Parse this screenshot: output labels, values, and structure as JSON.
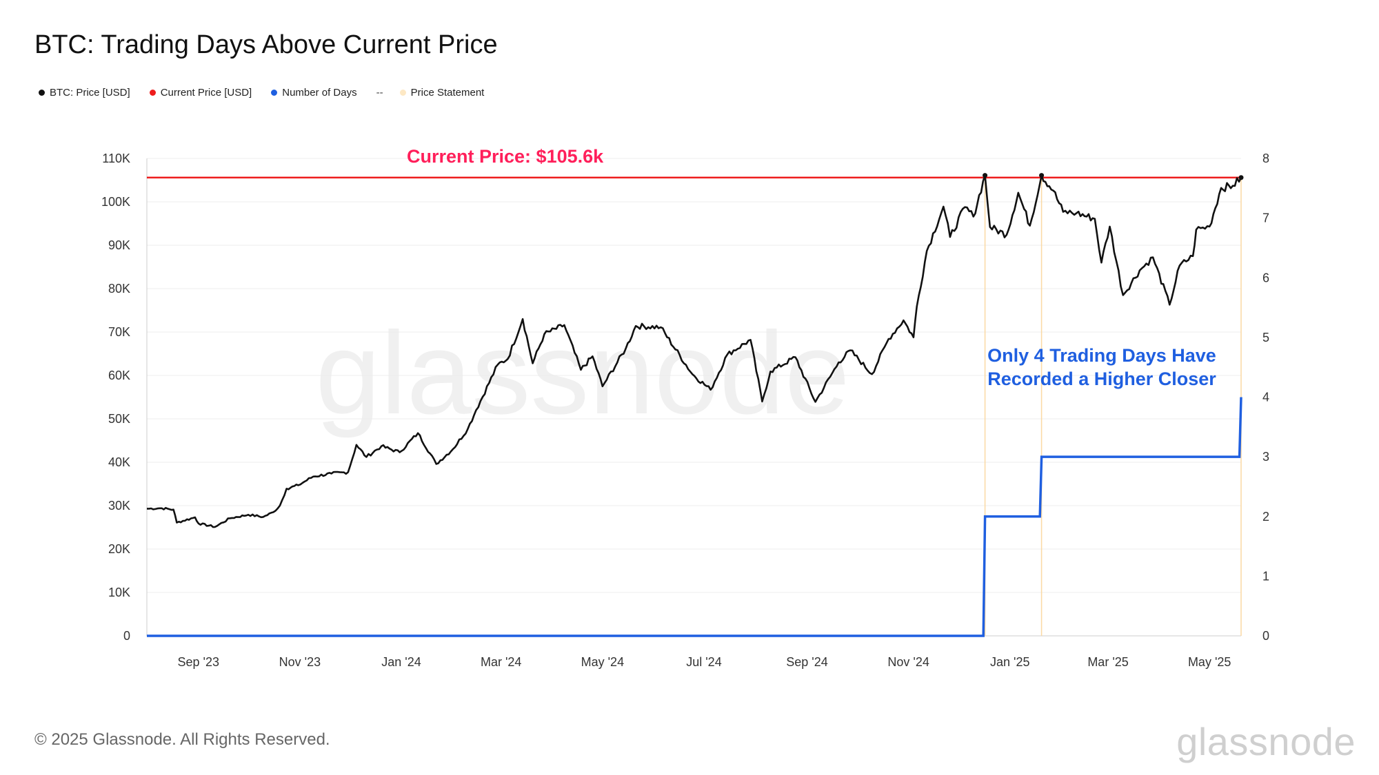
{
  "title": "BTC: Trading Days Above Current Price",
  "legend": [
    {
      "label": "BTC: Price [USD]",
      "color": "#111111"
    },
    {
      "label": "Current Price [USD]",
      "color": "#ee1c1c"
    },
    {
      "label": "Number of Days",
      "color": "#1f5fe0"
    },
    {
      "label": "--",
      "color": ""
    },
    {
      "label": "Price Statement",
      "color": "#fde8c4"
    }
  ],
  "footer": "© 2025 Glassnode. All Rights Reserved.",
  "brand": "glassnode",
  "watermark": "glassnode",
  "chart_data": {
    "type": "line",
    "title": "BTC: Trading Days Above Current Price",
    "x_range": [
      "2023-08-01",
      "2025-05-20"
    ],
    "x_ticks": [
      {
        "date": "2023-09-01",
        "label": "Sep '23"
      },
      {
        "date": "2023-11-01",
        "label": "Nov '23"
      },
      {
        "date": "2024-01-01",
        "label": "Jan '24"
      },
      {
        "date": "2024-03-01",
        "label": "Mar '24"
      },
      {
        "date": "2024-05-01",
        "label": "May '24"
      },
      {
        "date": "2024-07-01",
        "label": "Jul '24"
      },
      {
        "date": "2024-09-01",
        "label": "Sep '24"
      },
      {
        "date": "2024-11-01",
        "label": "Nov '24"
      },
      {
        "date": "2025-01-01",
        "label": "Jan '25"
      },
      {
        "date": "2025-03-01",
        "label": "Mar '25"
      },
      {
        "date": "2025-05-01",
        "label": "May '25"
      }
    ],
    "y_left": {
      "min": 0,
      "max": 110000,
      "ticks": [
        {
          "value": 0,
          "label": "0"
        },
        {
          "value": 10000,
          "label": "10K"
        },
        {
          "value": 20000,
          "label": "20K"
        },
        {
          "value": 30000,
          "label": "30K"
        },
        {
          "value": 40000,
          "label": "40K"
        },
        {
          "value": 50000,
          "label": "50K"
        },
        {
          "value": 60000,
          "label": "60K"
        },
        {
          "value": 70000,
          "label": "70K"
        },
        {
          "value": 80000,
          "label": "80K"
        },
        {
          "value": 90000,
          "label": "90K"
        },
        {
          "value": 100000,
          "label": "100K"
        },
        {
          "value": 110000,
          "label": "110K"
        }
      ]
    },
    "y_right": {
      "min": 0,
      "max": 8,
      "ticks": [
        {
          "value": 0,
          "label": "0"
        },
        {
          "value": 1,
          "label": "1"
        },
        {
          "value": 2,
          "label": "2"
        },
        {
          "value": 3,
          "label": "3"
        },
        {
          "value": 4,
          "label": "4"
        },
        {
          "value": 5,
          "label": "5"
        },
        {
          "value": 6,
          "label": "6"
        },
        {
          "value": 7,
          "label": "7"
        },
        {
          "value": 8,
          "label": "8"
        }
      ]
    },
    "grid": true,
    "current_price": 105600,
    "series": [
      {
        "name": "BTC: Price [USD]",
        "axis": "left",
        "color": "#111111",
        "points": [
          [
            "2023-08-01",
            29300
          ],
          [
            "2023-08-10",
            29400
          ],
          [
            "2023-08-17",
            29100
          ],
          [
            "2023-08-19",
            26100
          ],
          [
            "2023-08-30",
            27300
          ],
          [
            "2023-09-01",
            25900
          ],
          [
            "2023-09-11",
            25100
          ],
          [
            "2023-09-20",
            27100
          ],
          [
            "2023-10-01",
            27900
          ],
          [
            "2023-10-10",
            27400
          ],
          [
            "2023-10-16",
            28500
          ],
          [
            "2023-10-20",
            30000
          ],
          [
            "2023-10-24",
            33900
          ],
          [
            "2023-10-31",
            34700
          ],
          [
            "2023-11-09",
            36700
          ],
          [
            "2023-11-20",
            37400
          ],
          [
            "2023-11-30",
            37700
          ],
          [
            "2023-12-05",
            44000
          ],
          [
            "2023-12-11",
            41200
          ],
          [
            "2023-12-20",
            43700
          ],
          [
            "2023-12-31",
            42300
          ],
          [
            "2024-01-11",
            46700
          ],
          [
            "2024-01-22",
            39600
          ],
          [
            "2024-02-01",
            43000
          ],
          [
            "2024-02-10",
            47700
          ],
          [
            "2024-02-15",
            52000
          ],
          [
            "2024-02-28",
            62500
          ],
          [
            "2024-03-05",
            63800
          ],
          [
            "2024-03-14",
            73000
          ],
          [
            "2024-03-20",
            62800
          ],
          [
            "2024-03-27",
            69500
          ],
          [
            "2024-04-08",
            71600
          ],
          [
            "2024-04-18",
            61300
          ],
          [
            "2024-04-25",
            64400
          ],
          [
            "2024-05-01",
            57500
          ],
          [
            "2024-05-15",
            66200
          ],
          [
            "2024-05-21",
            71400
          ],
          [
            "2024-06-05",
            71100
          ],
          [
            "2024-06-24",
            60300
          ],
          [
            "2024-07-05",
            56700
          ],
          [
            "2024-07-15",
            64800
          ],
          [
            "2024-07-29",
            68200
          ],
          [
            "2024-08-05",
            54000
          ],
          [
            "2024-08-10",
            60900
          ],
          [
            "2024-08-25",
            64200
          ],
          [
            "2024-09-06",
            53900
          ],
          [
            "2024-09-20",
            63000
          ],
          [
            "2024-09-27",
            65800
          ],
          [
            "2024-10-10",
            60300
          ],
          [
            "2024-10-20",
            68400
          ],
          [
            "2024-10-29",
            72700
          ],
          [
            "2024-11-04",
            68800
          ],
          [
            "2024-11-06",
            75900
          ],
          [
            "2024-11-12",
            88700
          ],
          [
            "2024-11-22",
            98900
          ],
          [
            "2024-11-26",
            91900
          ],
          [
            "2024-12-05",
            98800
          ],
          [
            "2024-12-10",
            96600
          ],
          [
            "2024-12-17",
            106100
          ],
          [
            "2024-12-20",
            94200
          ],
          [
            "2024-12-30",
            92400
          ],
          [
            "2025-01-06",
            102100
          ],
          [
            "2025-01-13",
            94500
          ],
          [
            "2025-01-20",
            106100
          ],
          [
            "2025-01-27",
            102600
          ],
          [
            "2025-02-02",
            97700
          ],
          [
            "2025-02-10",
            97400
          ],
          [
            "2025-02-21",
            96100
          ],
          [
            "2025-02-25",
            86000
          ],
          [
            "2025-03-02",
            94300
          ],
          [
            "2025-03-10",
            78500
          ],
          [
            "2025-03-20",
            84200
          ],
          [
            "2025-03-28",
            87200
          ],
          [
            "2025-04-07",
            76300
          ],
          [
            "2025-04-13",
            85300
          ],
          [
            "2025-04-21",
            87500
          ],
          [
            "2025-04-23",
            93600
          ],
          [
            "2025-05-01",
            94300
          ],
          [
            "2025-05-08",
            103200
          ],
          [
            "2025-05-15",
            103700
          ],
          [
            "2025-05-20",
            105600
          ]
        ]
      },
      {
        "name": "Current Price [USD]",
        "axis": "left",
        "color": "#ee1c1c",
        "points": [
          [
            "2023-08-01",
            105600
          ],
          [
            "2025-05-20",
            105600
          ]
        ]
      },
      {
        "name": "Number of Days",
        "axis": "right",
        "color": "#1f5fe0",
        "points": [
          [
            "2023-08-01",
            0
          ],
          [
            "2024-12-16",
            0
          ],
          [
            "2024-12-17",
            2
          ],
          [
            "2025-01-19",
            2
          ],
          [
            "2025-01-20",
            3
          ],
          [
            "2025-05-19",
            3
          ],
          [
            "2025-05-20",
            4
          ]
        ]
      }
    ],
    "statement_markers": [
      "2024-12-17",
      "2025-01-20",
      "2025-05-20"
    ],
    "annotations": [
      {
        "text": "Current Price: $105.6k",
        "color": "#ff1f5a"
      },
      {
        "text": "Only 4 Trading Days Have",
        "color": "#1f5fe0"
      },
      {
        "text": "Recorded a Higher Closer",
        "color": "#1f5fe0"
      }
    ]
  }
}
